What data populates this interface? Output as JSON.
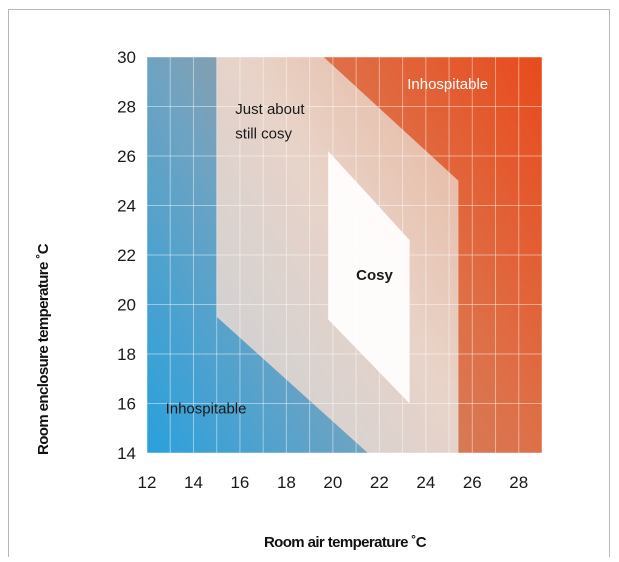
{
  "chart_data": {
    "type": "heatmap",
    "title": "",
    "xlabel": "Room air temperature ˚C",
    "ylabel": "Room enclosure temperature ˚C",
    "xlim": [
      12,
      29
    ],
    "ylim": [
      14,
      30
    ],
    "xticks": [
      12,
      14,
      16,
      18,
      20,
      22,
      24,
      26,
      28
    ],
    "yticks": [
      14,
      16,
      18,
      20,
      22,
      24,
      26,
      28,
      30
    ],
    "grid": true,
    "colors": {
      "hot": "#e84a1c",
      "cold": "#2aa0dc",
      "comfort": "#ffffff",
      "plot_background": "#d9b7a6"
    },
    "zones": [
      {
        "label": "Inhospitable",
        "polygon": [
          [
            19.6,
            30
          ],
          [
            29,
            30
          ],
          [
            29,
            14
          ],
          [
            25.4,
            14
          ],
          [
            25.4,
            25.0
          ]
        ]
      },
      {
        "label": "Just about still cosy",
        "polygon": [
          [
            15.0,
            30
          ],
          [
            19.6,
            30
          ],
          [
            25.4,
            25.0
          ],
          [
            25.4,
            14
          ],
          [
            21.5,
            14
          ],
          [
            15.0,
            19.5
          ]
        ]
      },
      {
        "label": "Cosy",
        "polygon": [
          [
            19.8,
            26.2
          ],
          [
            23.3,
            22.6
          ],
          [
            23.3,
            16.0
          ],
          [
            19.8,
            19.4
          ]
        ]
      },
      {
        "label": "Inhospitable",
        "polygon": [
          [
            12,
            30
          ],
          [
            15.0,
            30
          ],
          [
            15.0,
            19.5
          ],
          [
            21.5,
            14
          ],
          [
            12,
            14
          ]
        ]
      }
    ],
    "annotations": [
      {
        "text": "Inhospitable",
        "x": 23.2,
        "y": 28.7
      },
      {
        "text": "Just about",
        "x": 15.8,
        "y": 27.7
      },
      {
        "text": "still cosy",
        "x": 15.8,
        "y": 26.7
      },
      {
        "text": "Cosy",
        "x": 21.0,
        "y": 21.0
      },
      {
        "text": "Inhospitable",
        "x": 12.8,
        "y": 15.6
      }
    ]
  }
}
